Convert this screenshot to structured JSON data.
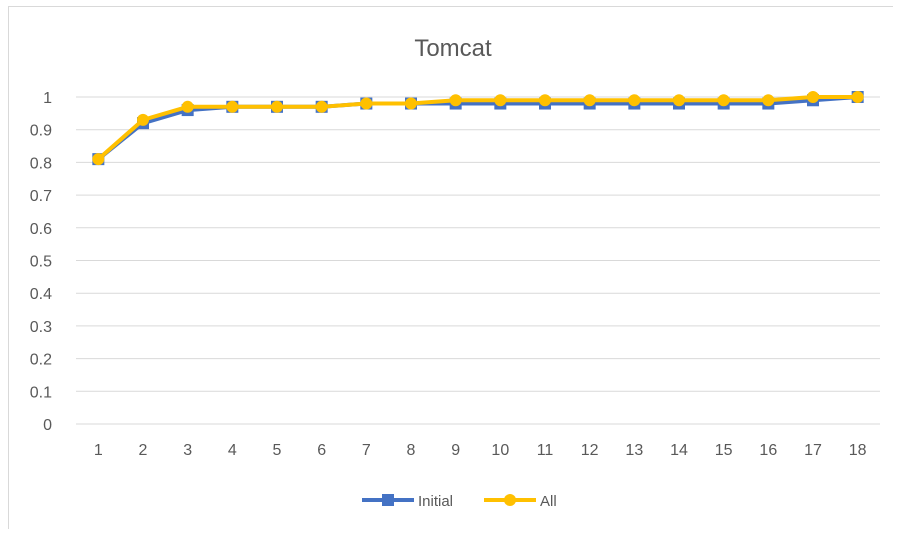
{
  "chart_data": {
    "type": "line",
    "title": "Tomcat",
    "xlabel": "",
    "ylabel": "",
    "x": [
      1,
      2,
      3,
      4,
      5,
      6,
      7,
      8,
      9,
      10,
      11,
      12,
      13,
      14,
      15,
      16,
      17,
      18
    ],
    "ylim": [
      0,
      1
    ],
    "yticks": [
      "0",
      "0.1",
      "0.2",
      "0.3",
      "0.4",
      "0.5",
      "0.6",
      "0.7",
      "0.8",
      "0.9",
      "1"
    ],
    "grid": true,
    "legend_position": "bottom",
    "series": [
      {
        "name": "Initial",
        "color": "#4472c4",
        "marker": "square",
        "values": [
          0.81,
          0.92,
          0.96,
          0.97,
          0.97,
          0.97,
          0.98,
          0.98,
          0.98,
          0.98,
          0.98,
          0.98,
          0.98,
          0.98,
          0.98,
          0.98,
          0.99,
          1.0
        ]
      },
      {
        "name": "All",
        "color": "#ffc000",
        "marker": "circle",
        "values": [
          0.81,
          0.93,
          0.97,
          0.97,
          0.97,
          0.97,
          0.98,
          0.98,
          0.99,
          0.99,
          0.99,
          0.99,
          0.99,
          0.99,
          0.99,
          0.99,
          1.0,
          1.0
        ]
      }
    ]
  }
}
